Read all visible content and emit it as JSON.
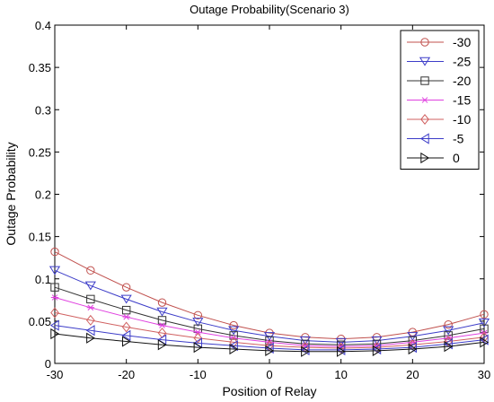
{
  "chart_data": {
    "type": "line",
    "title": "Outage Probability(Scenario 3)",
    "xlabel": "Position of Relay",
    "ylabel": "Outage Probability",
    "xlim": [
      -30,
      30
    ],
    "ylim": [
      0,
      0.4
    ],
    "xticks": [
      "-30",
      "-20",
      "-10",
      "0",
      "10",
      "20",
      "30"
    ],
    "yticks": [
      "0",
      "0.05",
      "0.1",
      "0.15",
      "0.2",
      "0.25",
      "0.3",
      "0.35",
      "0.4"
    ],
    "grid": false,
    "legend_position": "top-right",
    "x": [
      -30,
      -25,
      -20,
      -15,
      -10,
      -5,
      0,
      5,
      10,
      15,
      20,
      25,
      30
    ],
    "series": [
      {
        "name": "-30",
        "color": "#c0504d",
        "marker": "circle",
        "values": [
          0.132,
          0.11,
          0.09,
          0.072,
          0.057,
          0.045,
          0.036,
          0.031,
          0.029,
          0.031,
          0.037,
          0.046,
          0.058
        ]
      },
      {
        "name": "-25",
        "color": "#3c3cc8",
        "marker": "triangle-down",
        "values": [
          0.11,
          0.092,
          0.076,
          0.061,
          0.049,
          0.039,
          0.032,
          0.027,
          0.025,
          0.027,
          0.032,
          0.039,
          0.048
        ]
      },
      {
        "name": "-20",
        "color": "#333333",
        "marker": "square",
        "values": [
          0.09,
          0.076,
          0.063,
          0.051,
          0.041,
          0.033,
          0.027,
          0.023,
          0.022,
          0.023,
          0.027,
          0.033,
          0.041
        ]
      },
      {
        "name": "-15",
        "color": "#e040e0",
        "marker": "star",
        "values": [
          0.078,
          0.066,
          0.055,
          0.045,
          0.037,
          0.03,
          0.025,
          0.021,
          0.02,
          0.021,
          0.025,
          0.03,
          0.036
        ]
      },
      {
        "name": "-10",
        "color": "#d06060",
        "marker": "diamond",
        "values": [
          0.06,
          0.051,
          0.043,
          0.036,
          0.03,
          0.025,
          0.021,
          0.019,
          0.018,
          0.019,
          0.022,
          0.026,
          0.031
        ]
      },
      {
        "name": "-5",
        "color": "#3c3cc8",
        "marker": "triangle-left",
        "values": [
          0.045,
          0.039,
          0.033,
          0.028,
          0.024,
          0.021,
          0.018,
          0.016,
          0.016,
          0.017,
          0.019,
          0.023,
          0.028
        ]
      },
      {
        "name": "0",
        "color": "#111111",
        "marker": "triangle-right",
        "values": [
          0.035,
          0.03,
          0.026,
          0.022,
          0.019,
          0.017,
          0.015,
          0.014,
          0.014,
          0.015,
          0.017,
          0.02,
          0.025
        ]
      }
    ]
  }
}
